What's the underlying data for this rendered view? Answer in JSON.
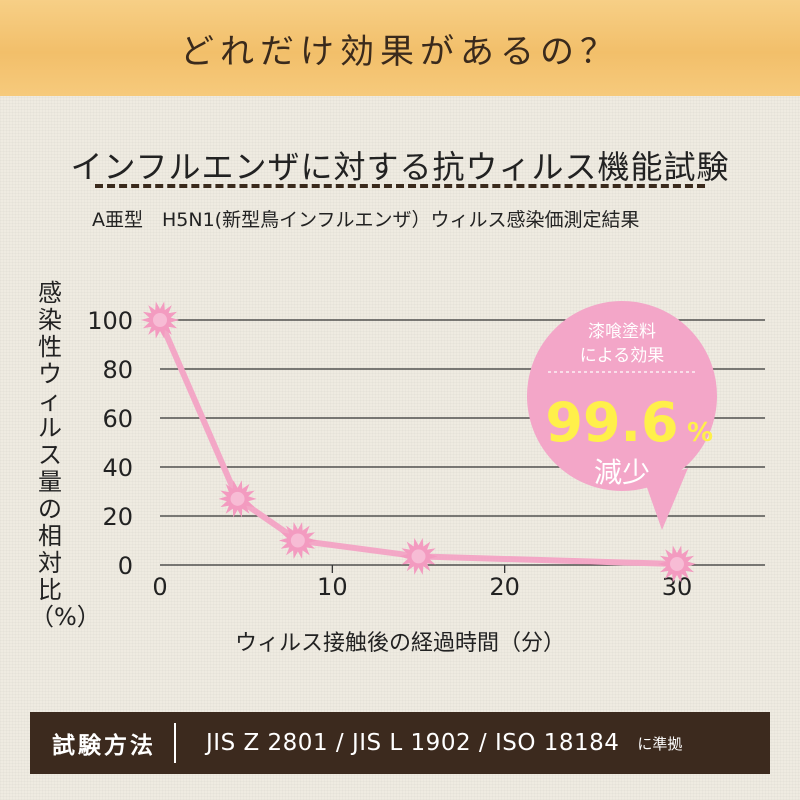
{
  "banner": {
    "text": "どれだけ効果があるの？"
  },
  "chart_data": {
    "type": "line",
    "title": "インフルエンザに対する抗ウィルス機能試験",
    "subtitle": "A亜型　H5N1(新型鳥インフルエンザ）ウィルス感染価測定結果",
    "ylabel": "感染性ウィルス量の相対比（%）",
    "xlabel": "ウィルス接触後の経過時間（分）",
    "xlim": [
      0,
      35
    ],
    "ylim": [
      0,
      100
    ],
    "x_ticks": [
      0,
      10,
      20,
      30
    ],
    "y_ticks": [
      0,
      20,
      40,
      60,
      80,
      100
    ],
    "grid": true,
    "series": [
      {
        "x": [
          0,
          4.5,
          8,
          15,
          30
        ],
        "y": [
          100,
          27,
          10,
          3.5,
          0.4
        ]
      }
    ],
    "callout": {
      "top": "漆喰塗料",
      "middle": "による効果",
      "value": "99.6",
      "unit": "%",
      "bottom": "減少"
    },
    "colors": {
      "line": "#f3a7c6",
      "marker": "#f39bc0",
      "callout": "#f3a6c8",
      "value": "#fff04a",
      "grid": "#333333"
    }
  },
  "footer": {
    "method_label": "試験方法",
    "standards": "JIS Z 2801 / JIS L 1902 / ISO 18184",
    "compliance": "に準拠"
  }
}
